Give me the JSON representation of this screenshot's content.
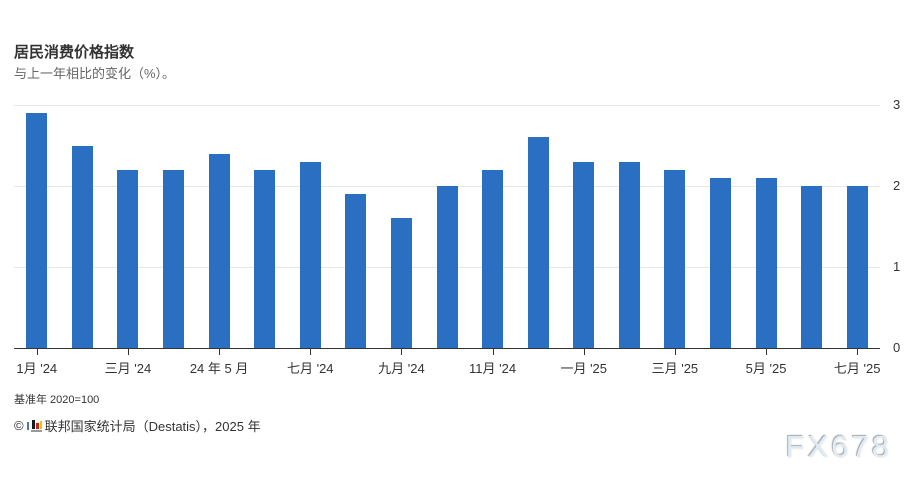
{
  "header": {
    "title": "居民消费价格指数",
    "subtitle": "与上一年相比的变化（%）。"
  },
  "chart_data": {
    "type": "bar",
    "title": "居民消费价格指数",
    "subtitle": "与上一年相比的变化（%）。",
    "x": [
      "2024-01",
      "2024-02",
      "2024-03",
      "2024-04",
      "2024-05",
      "2024-06",
      "2024-07",
      "2024-08",
      "2024-09",
      "2024-10",
      "2024-11",
      "2024-12",
      "2025-01",
      "2025-02",
      "2025-03",
      "2025-04",
      "2025-05",
      "2025-06",
      "2025-07"
    ],
    "values": [
      2.9,
      2.5,
      2.2,
      2.2,
      2.4,
      2.2,
      2.3,
      1.9,
      1.6,
      2.0,
      2.2,
      2.6,
      2.3,
      2.3,
      2.2,
      2.1,
      2.1,
      2.0,
      2.0
    ],
    "xtick_labels": [
      "1月 '24",
      "三月 '24",
      "24 年 5 月",
      "七月 '24",
      "九月 '24",
      "11月 '24",
      "一月 '25",
      "三月 '25",
      "5月 '25",
      "七月 '25"
    ],
    "xtick_positions": [
      0,
      2,
      4,
      6,
      8,
      10,
      12,
      14,
      16,
      18
    ],
    "ytick_labels": [
      "0",
      "1",
      "2",
      "3"
    ],
    "ylim": [
      0,
      3
    ],
    "xlabel": "",
    "ylabel": "",
    "grid": true,
    "yaxis_side": "right",
    "legend": false,
    "bar_color": "#2a6fc2"
  },
  "footer": {
    "baseline_note": "基准年 2020=100",
    "credit_prefix": "©",
    "credit_text": "联邦国家统计局（Destatis），2025 年"
  },
  "watermark": "FX678",
  "colors": {
    "bar": "#2a6fc2",
    "title": "#333333",
    "subtitle": "#666666",
    "axis_line": "#333333",
    "gridline": "#e6e6e6",
    "menu_icon": "#666666",
    "watermark": "#e2eaf2"
  }
}
